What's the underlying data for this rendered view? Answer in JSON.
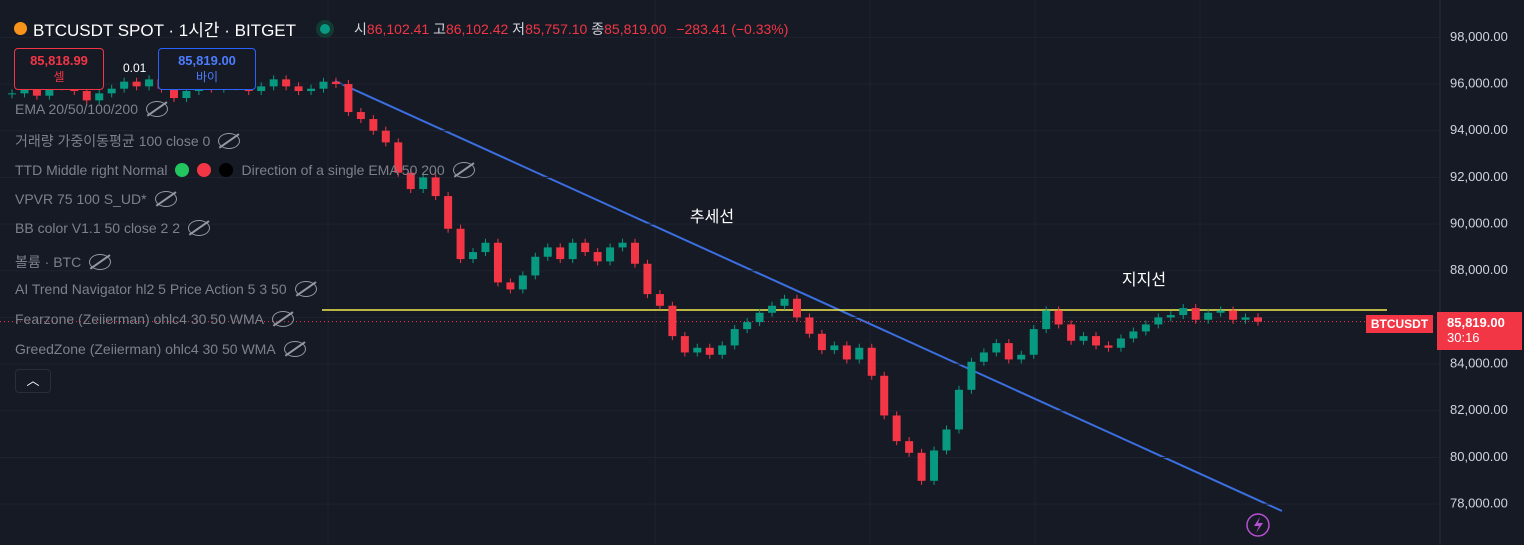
{
  "header": {
    "symbol": "BTCUSDT SPOT · 1시간 · BITGET",
    "open_label": "시",
    "open": "86,102.41",
    "high_label": "고",
    "high": "86,102.42",
    "low_label": "저",
    "low": "85,757.10",
    "close_label": "종",
    "close": "85,819.00",
    "change": "−283.41 (−0.33%)"
  },
  "order": {
    "sell_price": "85,818.99",
    "sell_label": "셀",
    "spread": "0.01",
    "buy_price": "85,819.00",
    "buy_label": "바이"
  },
  "indicators": [
    "EMA 20/50/100/200",
    "거래량 가중이동평균 100 close 0",
    "TTD Middle right Normal",
    "Direction of a single EMA 50 200",
    "VPVR 75 100 S_UD*",
    "BB color V1.1 50 close 2 2",
    "볼륨 · BTC",
    "AI Trend Navigator hl2 5 Price Action 5 3 50",
    "Fearzone (Zeiierman) ohlc4 30 50 WMA",
    "GreedZone (Zeiierman) ohlc4 30 50 WMA"
  ],
  "chart_data": {
    "type": "candlestick",
    "up_color": "#089981",
    "down_color": "#f23645",
    "grid": true,
    "ylim": [
      76250,
      99600
    ],
    "yticks": [
      {
        "value": 98000,
        "label": "98,000.00"
      },
      {
        "value": 96000,
        "label": "96,000.00"
      },
      {
        "value": 94000,
        "label": "94,000.00"
      },
      {
        "value": 92000,
        "label": "92,000.00"
      },
      {
        "value": 90000,
        "label": "90,000.00"
      },
      {
        "value": 88000,
        "label": "88,000.00"
      },
      {
        "value": 86000,
        "label": "86,000.00"
      },
      {
        "value": 84000,
        "label": "84,000.00"
      },
      {
        "value": 82000,
        "label": "82,000.00"
      },
      {
        "value": 80000,
        "label": "80,000.00"
      },
      {
        "value": 78000,
        "label": "78,000.00"
      }
    ],
    "values": [
      95600,
      95800,
      95500,
      95900,
      96000,
      95700,
      95300,
      95600,
      95800,
      96100,
      95900,
      96200,
      95800,
      95400,
      95700,
      96000,
      95800,
      96100,
      95900,
      95700,
      95900,
      96200,
      95900,
      95700,
      95800,
      96100,
      96000,
      94800,
      94500,
      94000,
      93500,
      92200,
      91500,
      92000,
      91200,
      89800,
      88500,
      88800,
      89200,
      87500,
      87200,
      87800,
      88600,
      89000,
      88500,
      89200,
      88800,
      88400,
      89000,
      89200,
      88300,
      87000,
      86500,
      85200,
      84500,
      84700,
      84400,
      84800,
      85500,
      85800,
      86200,
      86500,
      86800,
      86000,
      85300,
      84600,
      84800,
      84200,
      84700,
      83500,
      81800,
      80700,
      80200,
      79000,
      80300,
      81200,
      82900,
      84100,
      84500,
      84900,
      84200,
      84400,
      85500,
      86300,
      85700,
      85000,
      85200,
      84800,
      84700,
      85100,
      85400,
      85700,
      86000,
      86100,
      86400,
      85900,
      86200,
      86300,
      85900,
      86000,
      85819
    ],
    "trend_label": "추세선",
    "support_label": "지지선",
    "last_symbol": "BTCUSDT",
    "last_price": {
      "value": 85819,
      "label": "85,819.00"
    },
    "countdown": "30:16"
  }
}
